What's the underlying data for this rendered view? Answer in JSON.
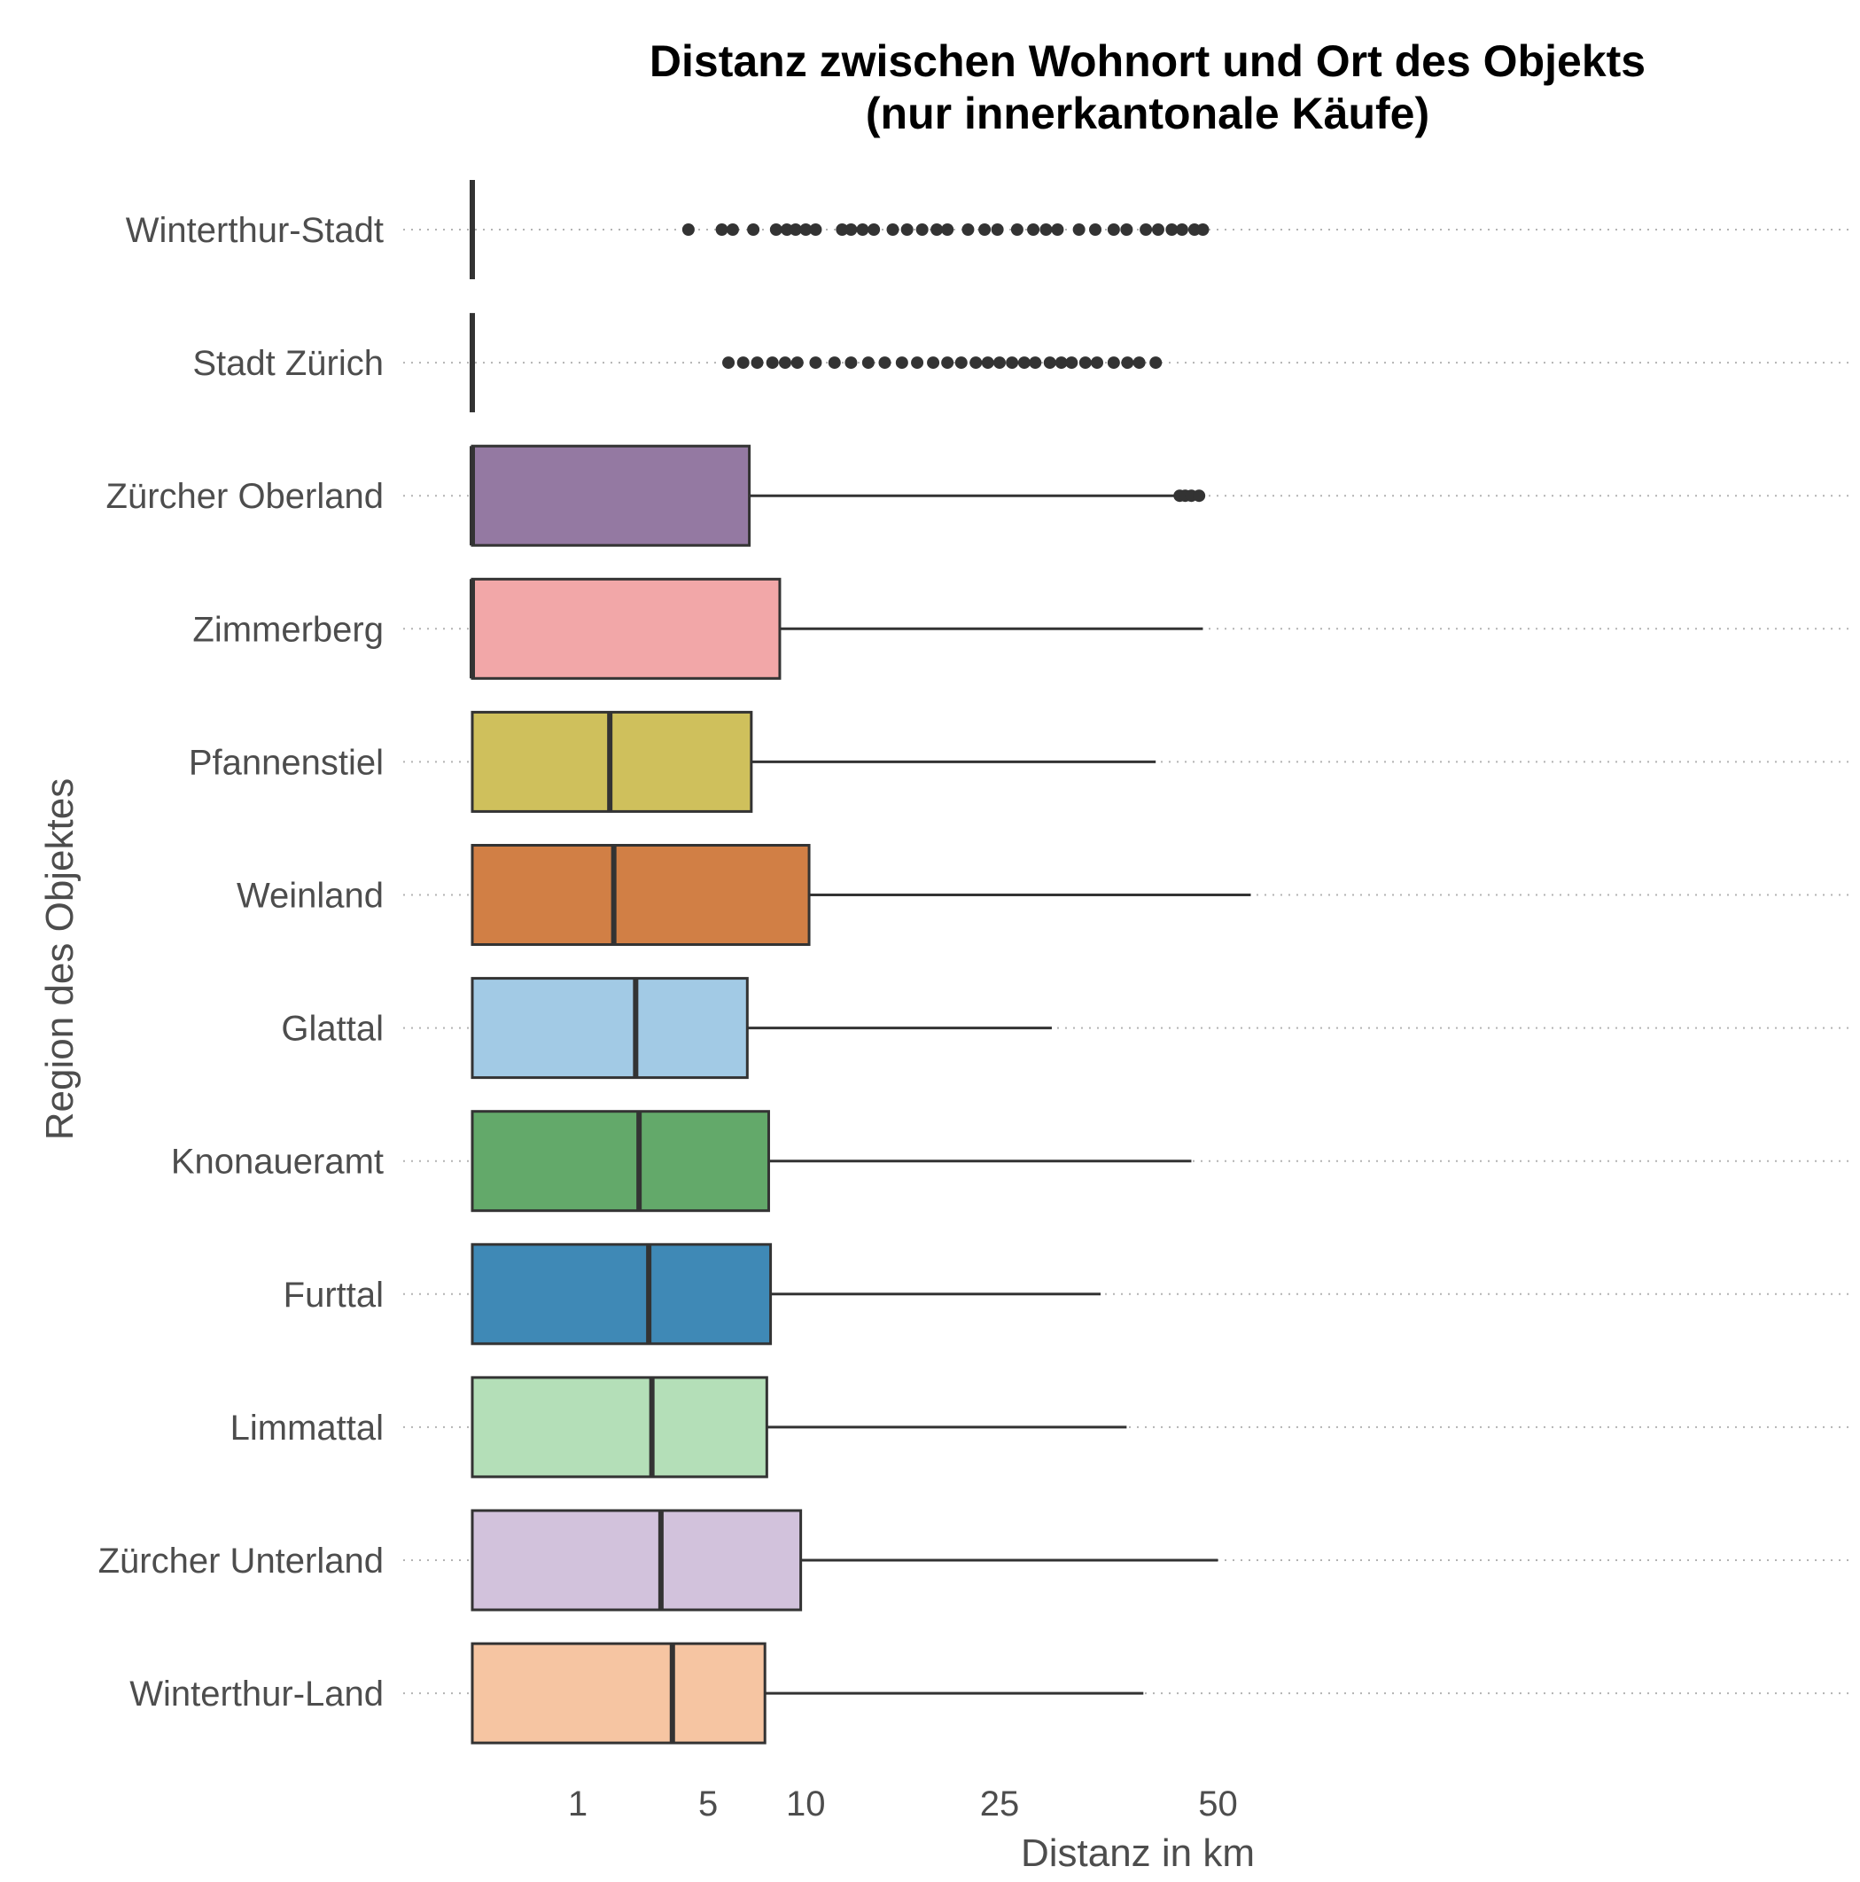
{
  "chart_data": {
    "type": "boxplot",
    "title": "Distanz zwischen Wohnort und Ort des Objekts",
    "subtitle": "(nur innerkantonale Käufe)",
    "xlabel": "Distanz in km",
    "ylabel": "Region des Objektes",
    "x_scale": "sqrt",
    "xlim": [
      0,
      55
    ],
    "x_ticks": [
      1,
      5,
      10,
      25,
      50
    ],
    "grid": "horizontal dotted",
    "legend": "none",
    "series": [
      {
        "category": "Winterthur-Stadt",
        "color": "#ffffff",
        "q1": 0,
        "median": 0,
        "q3": 0,
        "whisker_low": 0,
        "whisker_high": 0,
        "outliers": [
          4.2,
          5.6,
          6.1,
          7.1,
          8.3,
          8.9,
          9.4,
          10.0,
          10.6,
          12.3,
          12.9,
          13.7,
          14.5,
          15.9,
          17.0,
          18.2,
          19.4,
          20.3,
          22.1,
          23.6,
          24.8,
          26.7,
          28.3,
          29.6,
          30.8,
          33.1,
          34.9,
          37.0,
          38.5,
          40.8,
          42.3,
          44.0,
          45.3,
          46.9,
          48.0
        ]
      },
      {
        "category": "Stadt Zürich",
        "color": "#ffffff",
        "q1": 0,
        "median": 0,
        "q3": 0,
        "whisker_low": 0,
        "whisker_high": 0,
        "outliers": [
          5.9,
          6.6,
          7.3,
          8.1,
          8.8,
          9.5,
          10.6,
          11.8,
          12.9,
          14.1,
          15.3,
          16.6,
          17.8,
          19.1,
          20.3,
          21.5,
          22.8,
          23.9,
          25.0,
          26.2,
          27.4,
          28.5,
          30.0,
          31.2,
          32.3,
          33.8,
          35.1,
          37.0,
          38.6,
          40.0,
          42.0
        ]
      },
      {
        "category": "Zürcher Oberland",
        "color": "#9479a2",
        "q1": 0,
        "median": 0,
        "q3": 6.9,
        "whisker_low": 0,
        "whisker_high": 44.5,
        "outliers": [
          45.0,
          45.7,
          46.5,
          47.5
        ]
      },
      {
        "category": "Zimmerberg",
        "color": "#f2a7a8",
        "q1": 0,
        "median": 0,
        "q3": 8.5,
        "whisker_low": 0,
        "whisker_high": 48.0,
        "outliers": []
      },
      {
        "category": "Pfannenstiel",
        "color": "#cfc05c",
        "q1": 0,
        "median": 1.7,
        "q3": 7.0,
        "whisker_low": 0,
        "whisker_high": 42.0,
        "outliers": []
      },
      {
        "category": "Weinland",
        "color": "#d17f45",
        "q1": 0,
        "median": 1.8,
        "q3": 10.2,
        "whisker_low": 0,
        "whisker_high": 54.5,
        "outliers": []
      },
      {
        "category": "Glattal",
        "color": "#a2cae5",
        "q1": 0,
        "median": 2.4,
        "q3": 6.8,
        "whisker_low": 0,
        "whisker_high": 30.2,
        "outliers": []
      },
      {
        "category": "Knonaueramt",
        "color": "#63a96a",
        "q1": 0,
        "median": 2.5,
        "q3": 7.9,
        "whisker_low": 0,
        "whisker_high": 46.5,
        "outliers": []
      },
      {
        "category": "Furttal",
        "color": "#3f89b6",
        "q1": 0,
        "median": 2.8,
        "q3": 8.0,
        "whisker_low": 0,
        "whisker_high": 35.5,
        "outliers": []
      },
      {
        "category": "Limmattal",
        "color": "#b4dfb8",
        "q1": 0,
        "median": 2.9,
        "q3": 7.8,
        "whisker_low": 0,
        "whisker_high": 38.5,
        "outliers": []
      },
      {
        "category": "Zürcher Unterland",
        "color": "#d2c2dc",
        "q1": 0,
        "median": 3.2,
        "q3": 9.7,
        "whisker_low": 0,
        "whisker_high": 50.0,
        "outliers": []
      },
      {
        "category": "Winterthur-Land",
        "color": "#f6c5a2",
        "q1": 0,
        "median": 3.6,
        "q3": 7.7,
        "whisker_low": 0,
        "whisker_high": 40.5,
        "outliers": []
      }
    ]
  }
}
